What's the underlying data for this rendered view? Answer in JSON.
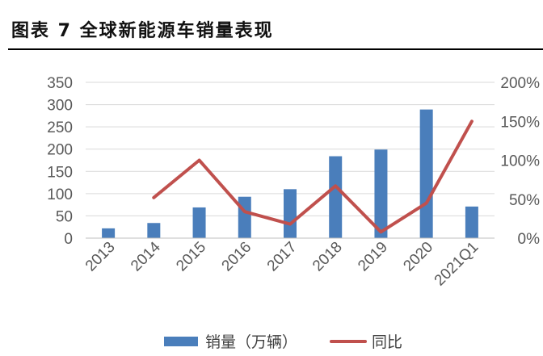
{
  "figure": {
    "title": "图表 7 全球新能源车销量表现"
  },
  "chart_data": {
    "type": "bar",
    "categories": [
      "2013",
      "2014",
      "2015",
      "2016",
      "2017",
      "2018",
      "2019",
      "2020",
      "2021Q1"
    ],
    "series": [
      {
        "name": "销量（万辆）",
        "type": "bar",
        "axis": "left",
        "color": "#4a7ebb",
        "values": [
          22,
          34,
          69,
          93,
          110,
          184,
          199,
          289,
          71
        ]
      },
      {
        "name": "同比",
        "type": "line",
        "axis": "right",
        "color": "#c0504d",
        "values": [
          null,
          52,
          100,
          34,
          18,
          67,
          8,
          45,
          150
        ],
        "unit": "%"
      }
    ],
    "left_axis": {
      "ylim": [
        0,
        350
      ],
      "ticks": [
        "0",
        "50",
        "100",
        "150",
        "200",
        "250",
        "300",
        "350"
      ]
    },
    "right_axis": {
      "ylim": [
        0,
        200
      ],
      "ticks": [
        "0%",
        "50%",
        "100%",
        "150%",
        "200%"
      ]
    },
    "grid": true,
    "legend": "bottom"
  }
}
